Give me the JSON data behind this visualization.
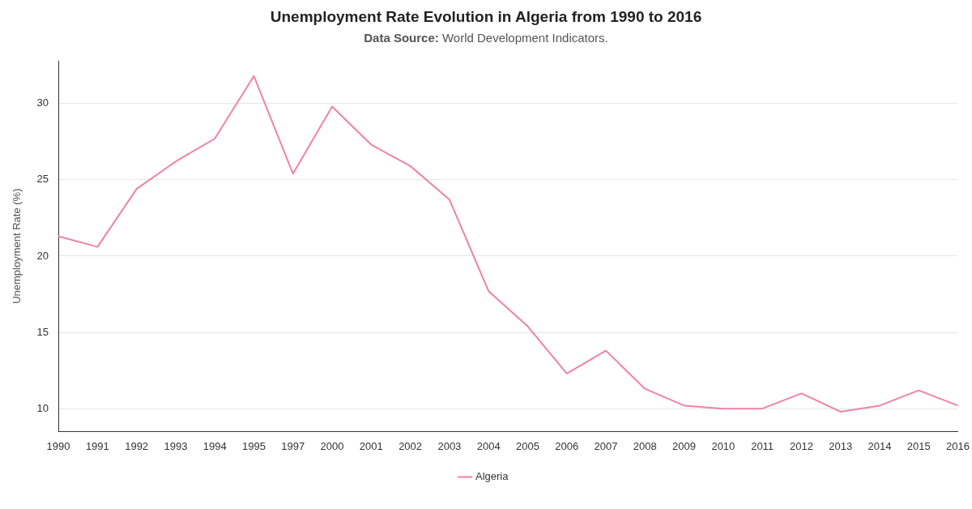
{
  "chart_data": {
    "type": "line",
    "title": "Unemployment Rate Evolution in Algeria from 1990 to 2016",
    "subtitle": "Data Source: World Development Indicators.",
    "ylabel": "Unemployment Rate (%)",
    "categories": [
      "1990",
      "1991",
      "1992",
      "1993",
      "1994",
      "1995",
      "1997",
      "2000",
      "2001",
      "2002",
      "2003",
      "2004",
      "2005",
      "2006",
      "2007",
      "2008",
      "2009",
      "2010",
      "2011",
      "2012",
      "2013",
      "2014",
      "2015",
      "2016"
    ],
    "series": [
      {
        "name": "Algeria",
        "color": "#f081a8",
        "values": [
          21.3,
          20.6,
          24.4,
          26.2,
          27.7,
          31.8,
          25.4,
          29.8,
          27.3,
          25.9,
          23.7,
          17.7,
          15.4,
          12.3,
          13.8,
          11.3,
          10.2,
          10.0,
          10.0,
          11.0,
          9.8,
          10.2,
          11.2,
          10.2
        ]
      }
    ],
    "ylim": [
      8.5,
      32.8
    ],
    "yticks": [
      10,
      15,
      20,
      25,
      30
    ],
    "grid": "y",
    "legend": "bottom",
    "marker": "none",
    "line_style": "solid"
  }
}
